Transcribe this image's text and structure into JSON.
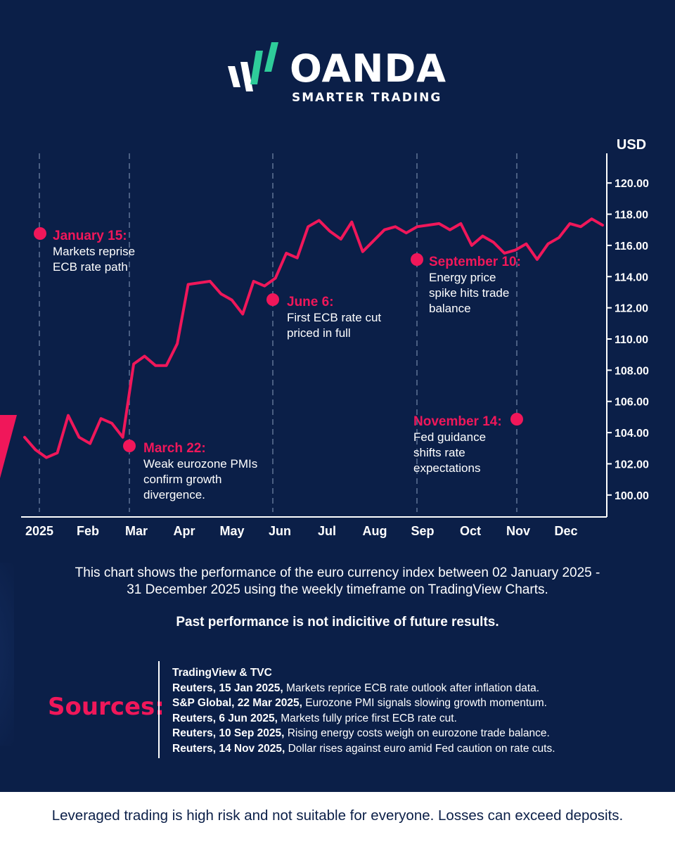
{
  "brand": {
    "name": "OANDA",
    "tagline": "SMARTER TRADING"
  },
  "colors": {
    "background": "#0b1f48",
    "accent": "#f0175a",
    "text": "#ffffff"
  },
  "chart_data": {
    "type": "line",
    "title": "",
    "xlabel": "",
    "ylabel": "USD",
    "ylim": [
      99,
      121
    ],
    "yticks": [
      "120.00",
      "118.00",
      "116.00",
      "114.00",
      "112.00",
      "110.00",
      "108.00",
      "106.00",
      "104.00",
      "102.00",
      "100.00"
    ],
    "month_labels": [
      "2025",
      "Feb",
      "Mar",
      "Apr",
      "May",
      "Jun",
      "Jul",
      "Aug",
      "Sep",
      "Oct",
      "Nov",
      "Dec"
    ],
    "grid": "vertical dashed lines at annotation dates",
    "series": [
      {
        "values": [
          103.7,
          102.9,
          102.4,
          102.7,
          105.1,
          103.7,
          103.3,
          104.9,
          104.6,
          103.7,
          108.4,
          108.9,
          108.3,
          108.3,
          109.7,
          113.5,
          113.6,
          113.7,
          112.9,
          112.5,
          111.6,
          113.7,
          113.4,
          113.9,
          115.5,
          115.2,
          117.2,
          117.6,
          116.9,
          116.4,
          117.5,
          115.6,
          116.3,
          117.0,
          117.2,
          116.8,
          117.2,
          117.3,
          117.4,
          117.0,
          117.4,
          116.0,
          116.6,
          116.2,
          115.5,
          115.7,
          116.1,
          115.1,
          116.1,
          116.5,
          117.4,
          117.2,
          117.7,
          117.3
        ]
      }
    ],
    "annotations": [
      {
        "date": "January 15:",
        "lines": [
          "Markets reprise",
          "ECB rate path"
        ]
      },
      {
        "date": "March 22:",
        "lines": [
          "Weak eurozone PMIs",
          "confirm growth",
          "divergence."
        ]
      },
      {
        "date": "June 6:",
        "lines": [
          "First ECB rate cut",
          "priced in full"
        ]
      },
      {
        "date": "September 10:",
        "lines": [
          "Energy price",
          "spike hits trade",
          "balance"
        ]
      },
      {
        "date": "November 14:",
        "lines": [
          "Fed guidance",
          "shifts rate",
          "expectations"
        ]
      }
    ]
  },
  "caption": {
    "line1": "This chart shows the performance of the euro currency index between 02 January 2025 -",
    "line2": "31 December 2025 using the weekly timeframe on TradingView Charts."
  },
  "warning": "Past performance is not indicitive of future results.",
  "sources": {
    "title": "Sources:",
    "items": [
      {
        "bold": "TradingView & TVC",
        "text": ""
      },
      {
        "bold": "Reuters, 15 Jan 2025,",
        "text": " Markets reprice ECB rate outlook after inflation data."
      },
      {
        "bold": "S&P Global, 22 Mar 2025,",
        "text": " Eurozone PMI signals slowing growth momentum."
      },
      {
        "bold": "Reuters, 6 Jun 2025,",
        "text": " Markets fully price first ECB rate cut."
      },
      {
        "bold": "Reuters, 10 Sep 2025,",
        "text": " Rising energy costs weigh on eurozone trade balance."
      },
      {
        "bold": "Reuters, 14 Nov 2025,",
        "text": " Dollar rises against euro amid Fed caution on rate cuts."
      }
    ]
  },
  "footer": {
    "disclaimer": "Leveraged trading is high risk and not suitable for everyone. Losses can exceed deposits."
  }
}
